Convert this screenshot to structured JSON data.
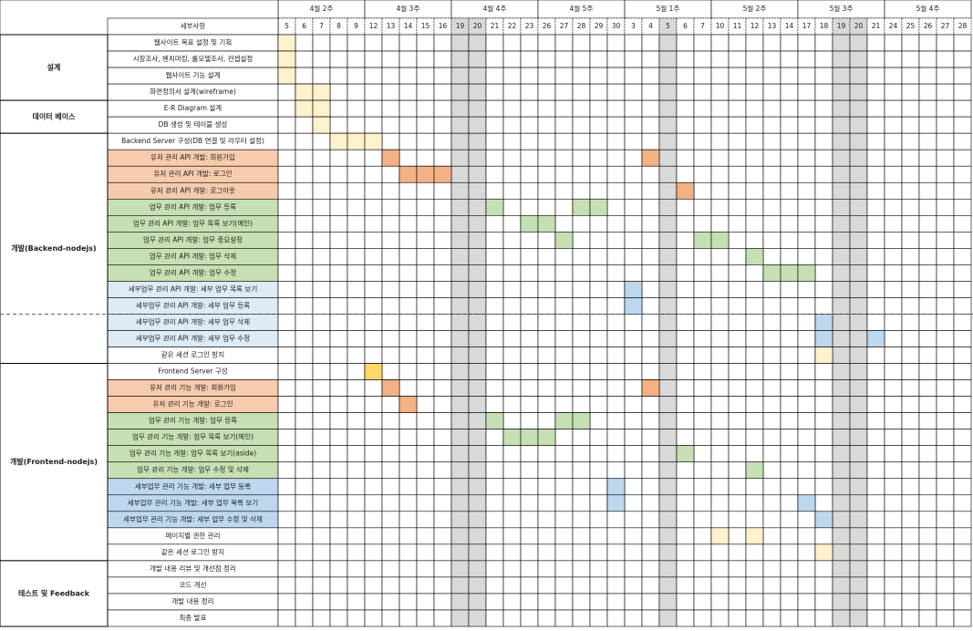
{
  "header": {
    "task_header": "세부사항"
  },
  "weeks": [
    {
      "label": "4월 2주",
      "days": [
        5,
        6,
        7,
        8,
        9
      ]
    },
    {
      "label": "4월 3주",
      "days": [
        12,
        13,
        14,
        15,
        16
      ]
    },
    {
      "label": "4월 4주",
      "days": [
        19,
        20,
        21,
        22,
        23
      ]
    },
    {
      "label": "4월 5주",
      "days": [
        26,
        27,
        28,
        29,
        30
      ]
    },
    {
      "label": "5월 1주",
      "days": [
        3,
        4,
        5,
        6,
        7
      ]
    },
    {
      "label": "5월 2주",
      "days": [
        10,
        11,
        12,
        13,
        14
      ]
    },
    {
      "label": "5월 3주",
      "days": [
        17,
        18,
        19,
        20,
        21
      ]
    },
    {
      "label": "5월 4주",
      "days": [
        24,
        25,
        26,
        27,
        28
      ]
    }
  ],
  "shaded_columns": [
    10,
    11,
    22,
    32,
    33
  ],
  "shade_color": "#d9d9d9",
  "sections": [
    {
      "label": "설계",
      "tasks": [
        {
          "label": "웹사이트 목표 설정 및 기획",
          "days": [
            0
          ],
          "color": "#fff2cc"
        },
        {
          "label": "시장조사, 벤치마킹, 롤모델조사, 컨셉설정",
          "days": [
            0
          ],
          "color": "#fff2cc"
        },
        {
          "label": "웹사이트 기능 설계",
          "days": [
            0
          ],
          "color": "#fff2cc"
        },
        {
          "label": "화면정의서 설계(wireframe)",
          "days": [
            1,
            2
          ],
          "color": "#fff2cc"
        }
      ]
    },
    {
      "label": "데이터 베이스",
      "tasks": [
        {
          "label": "E-R Diagram 설계",
          "days": [
            1,
            2
          ],
          "color": "#fff2cc"
        },
        {
          "label": "DB 생성 및 테이블 생성",
          "days": [
            2
          ],
          "color": "#fff2cc"
        }
      ]
    },
    {
      "label": "개발(Backend-nodejs)",
      "tasks": [
        {
          "label": "Backend Server 구성(DB 연결 및 라우터 설정)",
          "days": [
            3,
            4,
            5
          ],
          "color": "#fff2cc"
        },
        {
          "label": "유저 관리 API 개발: 회원가입",
          "days": [
            6,
            21
          ],
          "color": "#f4b183",
          "label_fill": "#f8cbad"
        },
        {
          "label": "유저 관리 API 개발: 로그인",
          "days": [
            7,
            8,
            9
          ],
          "color": "#f4b183",
          "label_fill": "#f8cbad"
        },
        {
          "label": "유저 관리 API 개발: 로그아웃",
          "days": [
            23
          ],
          "color": "#f4b183",
          "label_fill": "#f8cbad"
        },
        {
          "label": "업무 관리 API 개발: 업무 등록",
          "days": [
            12,
            17,
            18
          ],
          "color": "#c6e0b4",
          "label_fill": "#c6e0b4"
        },
        {
          "label": "업무 관리 API 개발: 업무 목록 보기(메인)",
          "days": [
            14,
            15
          ],
          "color": "#c6e0b4",
          "label_fill": "#c6e0b4"
        },
        {
          "label": "업무 관리 API 개발: 업무 중요설정",
          "days": [
            16,
            24,
            25
          ],
          "color": "#c6e0b4",
          "label_fill": "#c6e0b4"
        },
        {
          "label": "업무 관리 API 개발: 업무 삭제",
          "days": [
            27
          ],
          "color": "#c6e0b4",
          "label_fill": "#c6e0b4"
        },
        {
          "label": "업무 관리 API 개발: 업무 수정",
          "days": [
            28,
            29,
            30
          ],
          "color": "#c6e0b4",
          "label_fill": "#c6e0b4"
        },
        {
          "label": "세부업무 관리 API 개발: 세부 업무 목록 보기",
          "days": [
            20
          ],
          "color": "#bdd7ee",
          "label_fill": "#ddebf7"
        },
        {
          "label": "세부업무 관리 API 개발: 세부 업무 등록",
          "days": [
            20
          ],
          "color": "#bdd7ee",
          "label_fill": "#ddebf7"
        },
        {
          "label": "세부업무 관리 API 개발: 세부 업무 삭제",
          "days": [
            31
          ],
          "color": "#bdd7ee",
          "label_fill": "#ddebf7"
        },
        {
          "label": "세부업무 관리 API 개발: 세부 업무 수정",
          "days": [
            31,
            34
          ],
          "color": "#bdd7ee",
          "label_fill": "#ddebf7"
        },
        {
          "label": "같은 세션 로그인 방지",
          "days": [
            31
          ],
          "color": "#fff2cc"
        }
      ]
    },
    {
      "label": "개발(Frontend-nodejs)",
      "tasks": [
        {
          "label": "Frontend Server 구성",
          "days": [
            5
          ],
          "color": "#ffd966"
        },
        {
          "label": "유저 관리 기능 개발: 회원가입",
          "days": [
            6,
            21
          ],
          "color": "#f4b183",
          "label_fill": "#f8cbad"
        },
        {
          "label": "유저 관리 기능 개발: 로그인",
          "days": [
            7
          ],
          "color": "#f4b183",
          "label_fill": "#f8cbad"
        },
        {
          "label": "업무 관리 기능 개발: 업무 등록",
          "days": [
            12,
            16,
            17
          ],
          "color": "#c6e0b4",
          "label_fill": "#c6e0b4"
        },
        {
          "label": "업무 관리 기능 개발: 업무 목록 보기(메인)",
          "days": [
            13,
            14,
            15
          ],
          "color": "#c6e0b4",
          "label_fill": "#c6e0b4"
        },
        {
          "label": "업무 관리 기능 개발: 업무 목록 보기(aside)",
          "days": [
            23
          ],
          "color": "#c6e0b4",
          "label_fill": "#c6e0b4"
        },
        {
          "label": "업무 관리 기능 개발: 업무 수정 및 삭제",
          "days": [
            27
          ],
          "color": "#c6e0b4",
          "label_fill": "#c6e0b4"
        },
        {
          "label": "세부업무 관리 기능 개발: 세부 업무 등록",
          "days": [
            19
          ],
          "color": "#bdd7ee",
          "label_fill": "#bdd7ee"
        },
        {
          "label": "세부업무 관리 기능 개발: 세부 업무 목록 보기",
          "days": [
            19,
            30
          ],
          "color": "#bdd7ee",
          "label_fill": "#bdd7ee"
        },
        {
          "label": "세부업무 관리 기능 개발: 세부 업무 수정 및 삭제",
          "days": [
            31
          ],
          "color": "#bdd7ee",
          "label_fill": "#bdd7ee"
        },
        {
          "label": "페이지별 권한 관리",
          "days": [
            25,
            27
          ],
          "color": "#fff2cc"
        },
        {
          "label": "같은 세션 로그인 방지",
          "days": [
            31
          ],
          "color": "#fff2cc"
        }
      ]
    },
    {
      "label": "테스트 및 Feedback",
      "tasks": [
        {
          "label": "개발 내용 리뷰 및 개선점 정리",
          "days": [],
          "color": "#fff2cc"
        },
        {
          "label": "코드 개선",
          "days": [],
          "color": "#fff2cc"
        },
        {
          "label": "개발 내용 정리",
          "days": [],
          "color": "#fff2cc"
        },
        {
          "label": "최종 발표",
          "days": [],
          "color": "#fff2cc"
        }
      ]
    }
  ]
}
